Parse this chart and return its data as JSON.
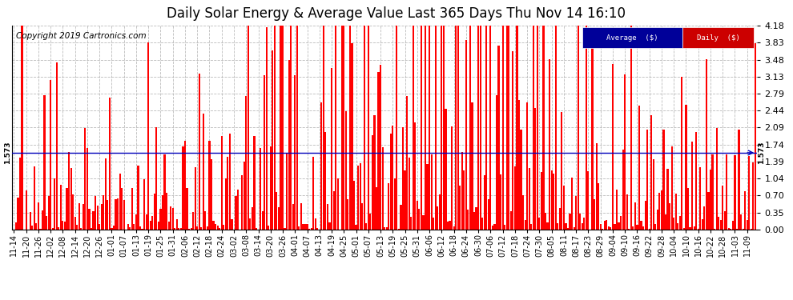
{
  "title": "Daily Solar Energy & Average Value Last 365 Days Thu Nov 14 16:10",
  "copyright": "Copyright 2019 Cartronics.com",
  "average_value": 1.573,
  "ylim": [
    0.0,
    4.18
  ],
  "yticks": [
    0.0,
    0.35,
    0.7,
    1.04,
    1.39,
    1.74,
    2.09,
    2.44,
    2.79,
    3.13,
    3.48,
    3.83,
    4.18
  ],
  "bar_color": "#FF0000",
  "avg_line_color": "#0000BB",
  "background_color": "#FFFFFF",
  "grid_color": "#AAAAAA",
  "legend_avg_bg": "#000099",
  "legend_daily_bg": "#CC0000",
  "legend_text_color": "#FFFFFF",
  "title_fontsize": 12,
  "copyright_fontsize": 7.5,
  "avg_label_fontsize": 6.5,
  "tick_fontsize": 8,
  "num_bars": 365,
  "x_tick_labels": [
    "11-14",
    "11-20",
    "11-26",
    "12-02",
    "12-08",
    "12-14",
    "12-20",
    "12-26",
    "01-01",
    "01-07",
    "01-13",
    "01-19",
    "01-25",
    "01-31",
    "02-06",
    "02-12",
    "02-18",
    "02-24",
    "03-02",
    "03-08",
    "03-14",
    "03-20",
    "03-26",
    "04-01",
    "04-07",
    "04-13",
    "04-19",
    "04-25",
    "05-01",
    "05-07",
    "05-13",
    "05-19",
    "05-25",
    "05-31",
    "06-06",
    "06-12",
    "06-18",
    "06-24",
    "06-30",
    "07-06",
    "07-12",
    "07-18",
    "07-24",
    "07-30",
    "08-05",
    "08-11",
    "08-17",
    "08-23",
    "08-29",
    "09-04",
    "09-10",
    "09-16",
    "09-22",
    "09-28",
    "10-04",
    "10-10",
    "10-16",
    "10-22",
    "10-28",
    "11-03",
    "11-09"
  ],
  "x_tick_positions": [
    0,
    6,
    12,
    18,
    24,
    30,
    36,
    42,
    48,
    54,
    60,
    66,
    72,
    78,
    84,
    90,
    96,
    102,
    108,
    114,
    120,
    126,
    132,
    138,
    144,
    150,
    156,
    162,
    168,
    174,
    180,
    186,
    192,
    198,
    204,
    210,
    216,
    222,
    228,
    234,
    240,
    246,
    252,
    258,
    264,
    270,
    276,
    282,
    288,
    294,
    300,
    306,
    312,
    318,
    324,
    330,
    336,
    342,
    348,
    354,
    360
  ]
}
